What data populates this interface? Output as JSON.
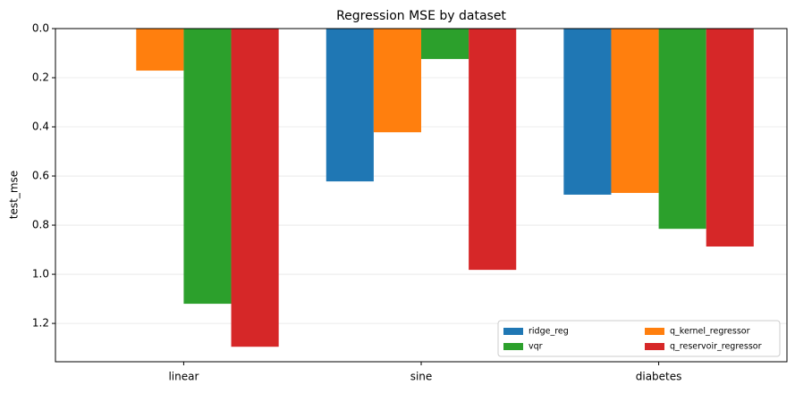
{
  "chart_data": {
    "type": "bar",
    "title": "Regression MSE by dataset",
    "y_label": "test_mse",
    "categories": [
      "linear",
      "sine",
      "diabetes"
    ],
    "series": [
      {
        "name": "ridge_reg",
        "color": "#1f77b4",
        "values": [
          0.001,
          0.622,
          0.676
        ]
      },
      {
        "name": "q_kernel_regressor",
        "color": "#ff7f0e",
        "values": [
          0.171,
          0.422,
          0.669
        ]
      },
      {
        "name": "vqr",
        "color": "#2ca02c",
        "values": [
          1.12,
          0.124,
          0.815
        ]
      },
      {
        "name": "q_reservoir_regressor",
        "color": "#d62728",
        "values": [
          1.295,
          0.982,
          0.887
        ]
      }
    ],
    "ylim": [
      0,
      1.356
    ],
    "y_inverted": true,
    "yticks": [
      {
        "value": 0,
        "label": "0.0"
      },
      {
        "value": 0.2,
        "label": "0.2"
      },
      {
        "value": 0.4,
        "label": "0.4"
      },
      {
        "value": 0.6,
        "label": "0.6"
      },
      {
        "value": 0.8,
        "label": "0.8"
      },
      {
        "value": 1.0,
        "label": "1.0"
      },
      {
        "value": 1.2,
        "label": "1.2"
      }
    ],
    "grid": true,
    "legend_position": "lower right"
  }
}
